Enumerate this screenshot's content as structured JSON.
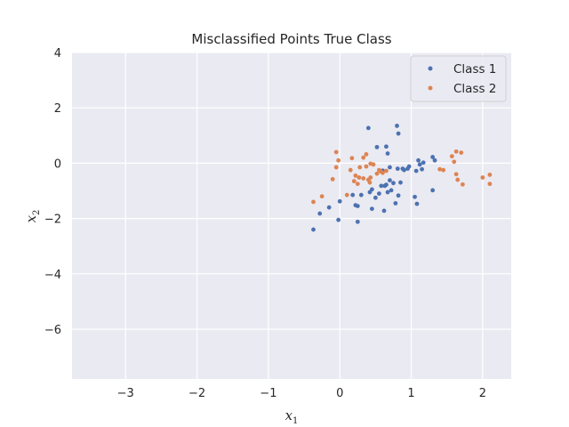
{
  "chart_data": {
    "type": "scatter",
    "title": "Misclassified Points True Class",
    "xlabel": {
      "base": "x",
      "sub": "1"
    },
    "ylabel": {
      "base": "x",
      "sub": "2"
    },
    "xlim": [
      -3.75,
      2.4
    ],
    "ylim": [
      -7.8,
      4.0
    ],
    "xticks": [
      -3,
      -2,
      -1,
      0,
      1,
      2
    ],
    "xtick_labels": [
      "−3",
      "−2",
      "−1",
      "0",
      "1",
      "2"
    ],
    "yticks": [
      4,
      2,
      0,
      -2,
      -4,
      -6
    ],
    "ytick_labels": [
      "4",
      "2",
      "0",
      "−2",
      "−4",
      "−6"
    ],
    "grid": true,
    "legend_position": "top-right",
    "series": [
      {
        "name": "Class 1",
        "color": "#4c72b0",
        "points": [
          [
            -0.37,
            -2.4
          ],
          [
            -0.28,
            -1.82
          ],
          [
            -0.15,
            -1.6
          ],
          [
            -0.02,
            -2.05
          ],
          [
            0.0,
            -1.38
          ],
          [
            0.18,
            -1.15
          ],
          [
            0.22,
            -1.52
          ],
          [
            0.25,
            -1.55
          ],
          [
            0.25,
            -2.12
          ],
          [
            0.3,
            -1.15
          ],
          [
            0.4,
            1.27
          ],
          [
            0.42,
            -1.05
          ],
          [
            0.45,
            -0.95
          ],
          [
            0.45,
            -1.65
          ],
          [
            0.5,
            -1.25
          ],
          [
            0.52,
            0.58
          ],
          [
            0.55,
            -1.1
          ],
          [
            0.58,
            -0.82
          ],
          [
            0.6,
            -0.27
          ],
          [
            0.62,
            -1.72
          ],
          [
            0.63,
            -0.82
          ],
          [
            0.65,
            0.6
          ],
          [
            0.65,
            -0.78
          ],
          [
            0.67,
            0.35
          ],
          [
            0.67,
            -1.05
          ],
          [
            0.7,
            -0.15
          ],
          [
            0.7,
            -0.62
          ],
          [
            0.72,
            -0.98
          ],
          [
            0.75,
            -0.72
          ],
          [
            0.78,
            -1.45
          ],
          [
            0.8,
            1.35
          ],
          [
            0.81,
            -0.2
          ],
          [
            0.82,
            1.07
          ],
          [
            0.82,
            -1.17
          ],
          [
            0.85,
            -0.7
          ],
          [
            0.88,
            -0.2
          ],
          [
            0.9,
            -0.25
          ],
          [
            0.95,
            -0.2
          ],
          [
            0.97,
            -0.12
          ],
          [
            1.05,
            -1.22
          ],
          [
            1.07,
            -0.28
          ],
          [
            1.08,
            -1.47
          ],
          [
            1.1,
            0.1
          ],
          [
            1.12,
            -0.05
          ],
          [
            1.15,
            -0.22
          ],
          [
            1.17,
            0.02
          ],
          [
            1.3,
            0.22
          ],
          [
            1.3,
            -0.98
          ],
          [
            1.33,
            0.1
          ]
        ]
      },
      {
        "name": "Class 2",
        "color": "#dd8452",
        "points": [
          [
            -0.37,
            -1.4
          ],
          [
            -0.25,
            -1.2
          ],
          [
            -0.1,
            -0.58
          ],
          [
            -0.05,
            0.4
          ],
          [
            -0.05,
            -0.15
          ],
          [
            -0.02,
            0.1
          ],
          [
            0.1,
            -1.15
          ],
          [
            0.15,
            -0.25
          ],
          [
            0.17,
            0.18
          ],
          [
            0.2,
            -0.65
          ],
          [
            0.22,
            -0.45
          ],
          [
            0.25,
            -0.75
          ],
          [
            0.27,
            -0.52
          ],
          [
            0.28,
            -0.15
          ],
          [
            0.33,
            -0.55
          ],
          [
            0.33,
            0.2
          ],
          [
            0.37,
            0.32
          ],
          [
            0.37,
            -0.12
          ],
          [
            0.4,
            -0.6
          ],
          [
            0.42,
            -0.7
          ],
          [
            0.43,
            -0.52
          ],
          [
            0.43,
            -0.02
          ],
          [
            0.47,
            -0.05
          ],
          [
            0.52,
            -0.38
          ],
          [
            0.55,
            -0.25
          ],
          [
            0.57,
            -0.3
          ],
          [
            0.6,
            -0.35
          ],
          [
            0.65,
            -0.28
          ],
          [
            1.4,
            -0.22
          ],
          [
            1.45,
            -0.25
          ],
          [
            1.57,
            0.25
          ],
          [
            1.6,
            0.05
          ],
          [
            1.63,
            -0.4
          ],
          [
            1.63,
            0.42
          ],
          [
            1.65,
            -0.6
          ],
          [
            1.7,
            0.38
          ],
          [
            1.72,
            -0.77
          ],
          [
            2.0,
            -0.52
          ],
          [
            2.1,
            -0.42
          ],
          [
            2.1,
            -0.75
          ]
        ]
      }
    ]
  }
}
